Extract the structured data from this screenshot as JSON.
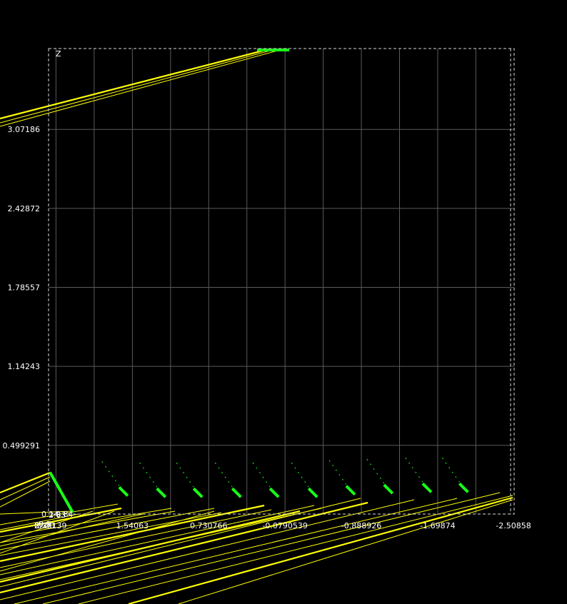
{
  "chart_data": {
    "type": "line",
    "title": "",
    "ylabel": "Z",
    "xlabel": "",
    "grid": true,
    "x_ticks": [
      "2.35139",
      "1.54063",
      "0.730766",
      "-0.0790539",
      "-0.888926",
      "-1.69874",
      "-2.50858"
    ],
    "y_ticks": [
      "0.499291",
      "1.14243",
      "1.78557",
      "2.42872",
      "3.07186"
    ],
    "xlim": [
      2.43,
      -2.51
    ],
    "ylim": [
      -0.06,
      3.73
    ],
    "colors": {
      "trace": "#ffff00",
      "marker": "#18ff18",
      "grid": "#5a5a5a",
      "background": "#000000"
    },
    "series": [
      {
        "values": [
          [
            -2.51,
            -0.06
          ],
          [
            -2.42,
            -0.06
          ]
        ]
      }
    ],
    "markers": [
      {
        "x": 2.43,
        "z": 0.28
      },
      {
        "x": 1.62,
        "z": 0.1
      },
      {
        "x": 1.22,
        "z": 0.09
      },
      {
        "x": 0.83,
        "z": 0.09
      },
      {
        "x": 0.42,
        "z": 0.09
      },
      {
        "x": 0.02,
        "z": 0.09
      },
      {
        "x": -0.39,
        "z": 0.09
      },
      {
        "x": -0.79,
        "z": 0.11
      },
      {
        "x": -1.19,
        "z": 0.12
      },
      {
        "x": -1.6,
        "z": 0.13
      },
      {
        "x": -1.99,
        "z": 0.13
      }
    ]
  }
}
